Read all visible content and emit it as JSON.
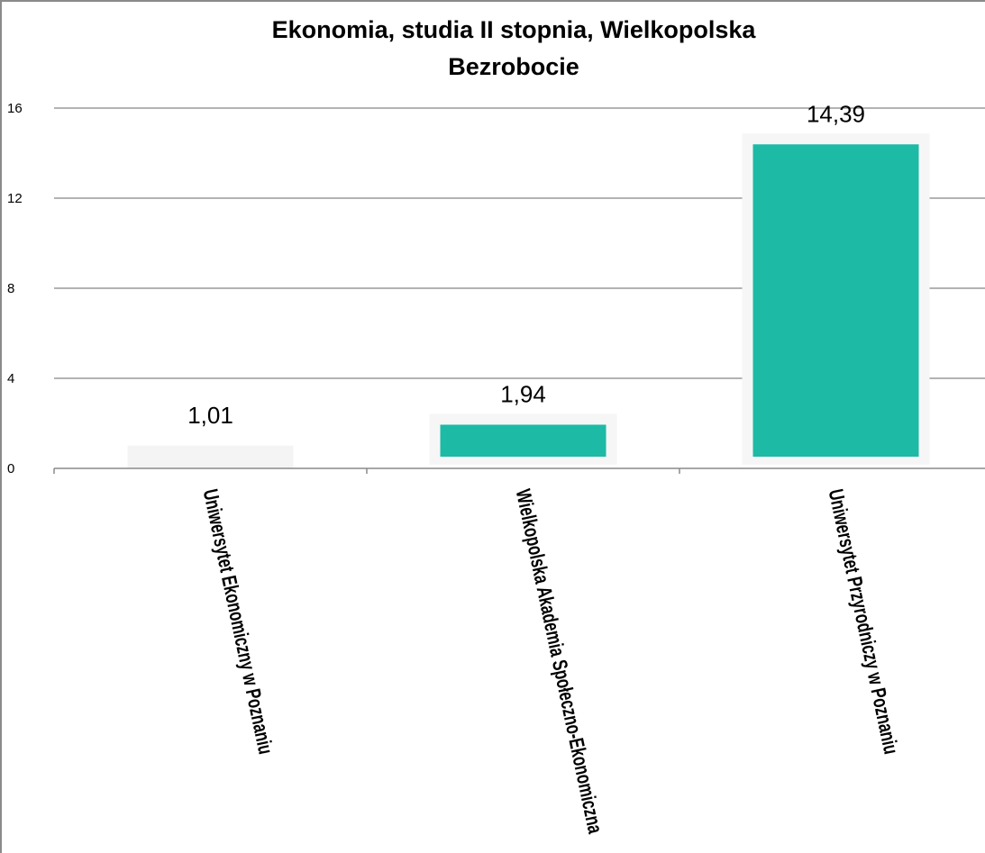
{
  "chart_data": {
    "type": "bar",
    "title": "Ekonomia, studia II stopnia, Wielkopolska",
    "subtitle": "Bezrobocie",
    "categories": [
      "Uniwersytet Ekonomiczny w Poznaniu",
      "Wielkopolska Akademia Społeczno-Ekonomiczna",
      "Uniwersytet Przyrodniczy w Poznaniu"
    ],
    "values": [
      1.01,
      1.94,
      14.39
    ],
    "value_labels": [
      "1,01",
      "1,94",
      "14,39"
    ],
    "ylim": [
      0,
      16
    ],
    "yticks": [
      0,
      4,
      8,
      12,
      16
    ],
    "ytick_labels": [
      "0",
      "4",
      "8",
      "12",
      "16"
    ],
    "xlabel": "",
    "ylabel": "",
    "grid": true,
    "legend": "none",
    "colors": {
      "bar": "#1dbaa5",
      "bar_faded": "#f4f4f4",
      "bar_halo": "#f6f6f6",
      "grid": "#9a9a9a",
      "axis": "#8a8a8a"
    }
  }
}
